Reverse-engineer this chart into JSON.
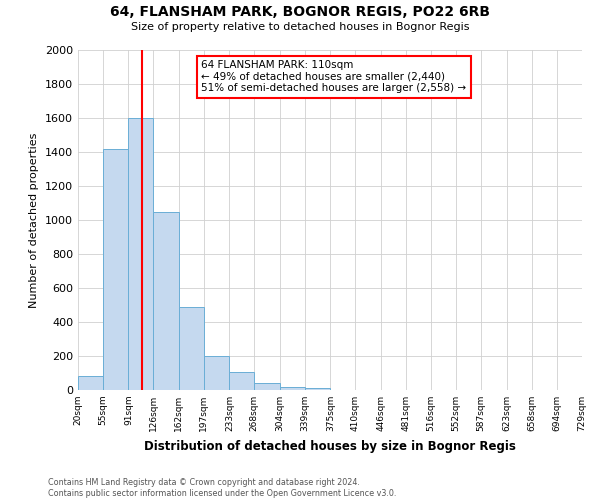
{
  "title": "64, FLANSHAM PARK, BOGNOR REGIS, PO22 6RB",
  "subtitle": "Size of property relative to detached houses in Bognor Regis",
  "xlabel": "Distribution of detached houses by size in Bognor Regis",
  "ylabel": "Number of detached properties",
  "bin_labels": [
    "20sqm",
    "55sqm",
    "91sqm",
    "126sqm",
    "162sqm",
    "197sqm",
    "233sqm",
    "268sqm",
    "304sqm",
    "339sqm",
    "375sqm",
    "410sqm",
    "446sqm",
    "481sqm",
    "516sqm",
    "552sqm",
    "587sqm",
    "623sqm",
    "658sqm",
    "694sqm",
    "729sqm"
  ],
  "bar_values": [
    80,
    1420,
    1600,
    1050,
    490,
    200,
    105,
    40,
    20,
    10,
    0,
    0,
    0,
    0,
    0,
    0,
    0,
    0,
    0,
    0
  ],
  "bar_color": "#c5d9ef",
  "bar_edge_color": "#6aaed6",
  "vline_x": 110,
  "vline_color": "red",
  "annotation_title": "64 FLANSHAM PARK: 110sqm",
  "annotation_line1": "← 49% of detached houses are smaller (2,440)",
  "annotation_line2": "51% of semi-detached houses are larger (2,558) →",
  "annotation_box_color": "white",
  "annotation_box_edge": "red",
  "ylim": [
    0,
    2000
  ],
  "yticks": [
    0,
    200,
    400,
    600,
    800,
    1000,
    1200,
    1400,
    1600,
    1800,
    2000
  ],
  "bin_edges": [
    20,
    55,
    91,
    126,
    162,
    197,
    233,
    268,
    304,
    339,
    375,
    410,
    446,
    481,
    516,
    552,
    587,
    623,
    658,
    694,
    729
  ],
  "footer_line1": "Contains HM Land Registry data © Crown copyright and database right 2024.",
  "footer_line2": "Contains public sector information licensed under the Open Government Licence v3.0.",
  "bg_color": "#ffffff",
  "grid_color": "#d0d0d0"
}
